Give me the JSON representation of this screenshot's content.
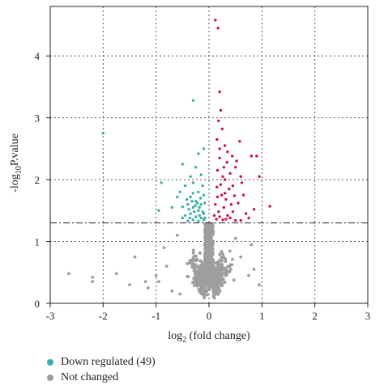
{
  "chart_data": {
    "type": "scatter",
    "xlabel_base": "log",
    "xlabel_sub": "2",
    "xlabel_rest": " (fold change)",
    "ylabel_pre": "-log",
    "ylabel_sub": "10",
    "ylabel_rest": "P.value",
    "xlim": [
      -3,
      3
    ],
    "ylim": [
      0,
      4.8
    ],
    "xticks": [
      -3,
      -2,
      -1,
      0,
      1,
      2,
      3
    ],
    "yticks": [
      0,
      1,
      2,
      3,
      4
    ],
    "grid": "dotted",
    "threshold_y": 1.3,
    "legend_position": "bottom-left",
    "series": [
      {
        "name": "Down regulated (49)",
        "color": "#3aaeaa",
        "points": [
          [
            -2.0,
            2.75
          ],
          [
            -0.3,
            3.28
          ],
          [
            -0.2,
            2.42
          ],
          [
            -0.25,
            2.2
          ],
          [
            -0.35,
            2.05
          ],
          [
            -0.5,
            2.25
          ],
          [
            -0.1,
            2.5
          ],
          [
            -0.15,
            2.08
          ],
          [
            -0.3,
            1.95
          ],
          [
            -0.45,
            1.9
          ],
          [
            -0.2,
            1.8
          ],
          [
            -0.35,
            1.72
          ],
          [
            -0.1,
            1.75
          ],
          [
            -0.25,
            1.65
          ],
          [
            -0.4,
            1.6
          ],
          [
            -0.15,
            1.6
          ],
          [
            -0.3,
            1.55
          ],
          [
            -0.2,
            1.5
          ],
          [
            -0.35,
            1.45
          ],
          [
            -0.1,
            1.45
          ],
          [
            -0.45,
            1.42
          ],
          [
            -0.25,
            1.4
          ],
          [
            -0.15,
            1.38
          ],
          [
            -0.3,
            1.35
          ],
          [
            -0.2,
            1.33
          ],
          [
            -0.4,
            1.33
          ],
          [
            -0.1,
            1.35
          ],
          [
            -0.5,
            1.38
          ],
          [
            -0.6,
            1.72
          ],
          [
            -0.9,
            1.95
          ],
          [
            -0.95,
            1.5
          ],
          [
            -0.7,
            1.55
          ],
          [
            -0.55,
            1.8
          ],
          [
            -0.12,
            1.9
          ],
          [
            -0.3,
            1.78
          ],
          [
            -0.18,
            1.55
          ],
          [
            -0.08,
            1.62
          ],
          [
            -0.38,
            1.52
          ],
          [
            -0.28,
            1.48
          ],
          [
            -0.22,
            1.62
          ],
          [
            -0.12,
            1.48
          ],
          [
            -0.42,
            1.68
          ],
          [
            -0.18,
            1.42
          ],
          [
            -0.32,
            1.65
          ],
          [
            -0.5,
            1.56
          ],
          [
            -0.08,
            1.38
          ],
          [
            -0.26,
            1.58
          ],
          [
            -0.16,
            1.7
          ],
          [
            -0.36,
            1.38
          ]
        ]
      },
      {
        "name": "Not changed",
        "color": "#9e9e9e",
        "points": []
      },
      {
        "name": "",
        "color": "#c8144b",
        "points": [
          [
            0.12,
            4.58
          ],
          [
            0.17,
            4.45
          ],
          [
            0.2,
            3.42
          ],
          [
            0.22,
            3.12
          ],
          [
            0.18,
            2.95
          ],
          [
            0.25,
            2.82
          ],
          [
            0.3,
            2.55
          ],
          [
            0.15,
            2.65
          ],
          [
            0.35,
            2.45
          ],
          [
            0.2,
            2.35
          ],
          [
            0.5,
            2.2
          ],
          [
            0.4,
            2.1
          ],
          [
            0.28,
            2.2
          ],
          [
            0.6,
            2.05
          ],
          [
            0.9,
            2.38
          ],
          [
            0.95,
            2.05
          ],
          [
            0.8,
            2.38
          ],
          [
            1.15,
            1.57
          ],
          [
            0.65,
            1.75
          ],
          [
            0.45,
            1.9
          ],
          [
            0.52,
            2.3
          ],
          [
            0.3,
            2.0
          ],
          [
            0.38,
            1.85
          ],
          [
            0.22,
            1.92
          ],
          [
            0.32,
            1.68
          ],
          [
            0.42,
            1.6
          ],
          [
            0.55,
            1.62
          ],
          [
            0.7,
            1.45
          ],
          [
            0.85,
            1.52
          ],
          [
            0.75,
            1.38
          ],
          [
            0.15,
            1.88
          ],
          [
            0.12,
            1.6
          ],
          [
            0.18,
            1.48
          ],
          [
            0.24,
            1.75
          ],
          [
            0.35,
            1.42
          ],
          [
            0.45,
            1.48
          ],
          [
            0.28,
            1.55
          ],
          [
            0.2,
            1.4
          ],
          [
            0.14,
            1.36
          ],
          [
            0.26,
            1.35
          ],
          [
            0.32,
            1.36
          ],
          [
            0.4,
            1.38
          ],
          [
            0.5,
            1.34
          ],
          [
            0.6,
            1.34
          ],
          [
            0.1,
            1.42
          ],
          [
            0.16,
            2.15
          ],
          [
            0.34,
            2.28
          ],
          [
            0.3,
            1.78
          ],
          [
            0.48,
            1.74
          ],
          [
            0.58,
            2.62
          ],
          [
            0.62,
            1.95
          ],
          [
            0.2,
            2.5
          ],
          [
            0.26,
            2.05
          ],
          [
            0.44,
            2.38
          ],
          [
            0.16,
            1.72
          ]
        ]
      }
    ]
  }
}
